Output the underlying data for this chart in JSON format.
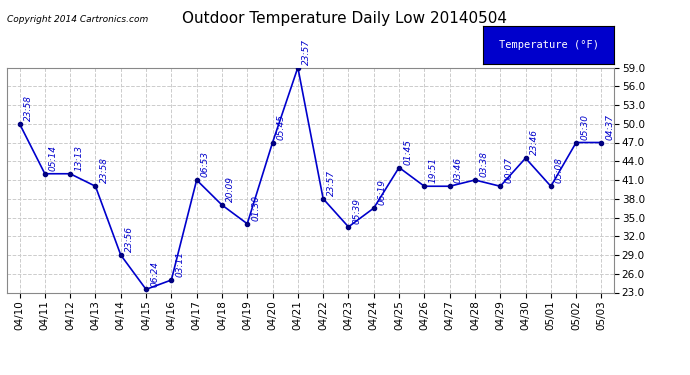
{
  "title": "Outdoor Temperature Daily Low 20140504",
  "copyright": "Copyright 2014 Cartronics.com",
  "legend_label": "Temperature (°F)",
  "x_labels": [
    "04/10",
    "04/11",
    "04/12",
    "04/13",
    "04/14",
    "04/15",
    "04/16",
    "04/17",
    "04/18",
    "04/19",
    "04/20",
    "04/21",
    "04/22",
    "04/23",
    "04/24",
    "04/25",
    "04/26",
    "04/27",
    "04/28",
    "04/29",
    "04/30",
    "05/01",
    "05/02",
    "05/03"
  ],
  "y_values": [
    50.0,
    42.0,
    42.0,
    40.0,
    29.0,
    23.5,
    25.0,
    41.0,
    37.0,
    34.0,
    47.0,
    59.0,
    38.0,
    33.5,
    36.5,
    43.0,
    40.0,
    40.0,
    41.0,
    40.0,
    44.5,
    40.0,
    47.0,
    47.0
  ],
  "time_labels": [
    "23:58",
    "05:14",
    "13:13",
    "23:58",
    "23:56",
    "06:24",
    "03:11",
    "06:53",
    "20:09",
    "01:30",
    "05:45",
    "23:57",
    "23:57",
    "05:39",
    "06:19",
    "01:45",
    "19:51",
    "03:46",
    "03:38",
    "00:07",
    "23:46",
    "05:08",
    "05:30",
    "04:37"
  ],
  "line_color": "#0000cc",
  "marker_color": "#000080",
  "label_color": "#0000cc",
  "background_color": "#ffffff",
  "plot_bg_color": "#ffffff",
  "grid_color": "#cccccc",
  "ylim_min": 23.0,
  "ylim_max": 59.0,
  "yticks": [
    23.0,
    26.0,
    29.0,
    32.0,
    35.0,
    38.0,
    41.0,
    44.0,
    47.0,
    50.0,
    53.0,
    56.0,
    59.0
  ],
  "legend_bg": "#0000cc",
  "legend_fg": "#ffffff",
  "title_fontsize": 11,
  "label_fontsize": 6.5,
  "tick_fontsize": 7.5,
  "copyright_fontsize": 6.5
}
